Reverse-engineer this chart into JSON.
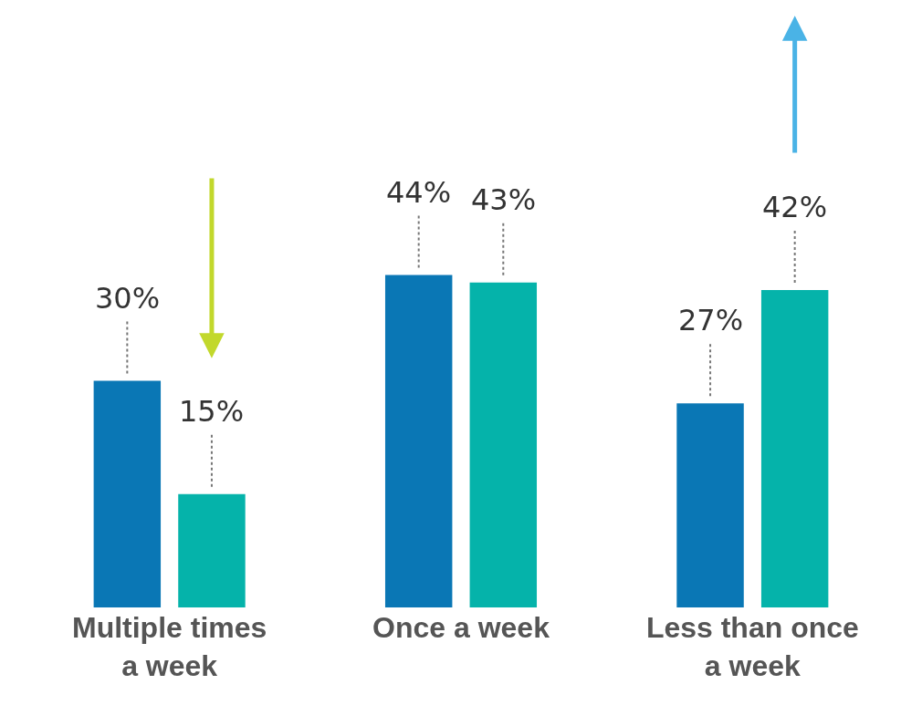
{
  "chart_data": {
    "type": "bar",
    "categories": [
      "Multiple times a week",
      "Once a week",
      "Less than once a week"
    ],
    "series": [
      {
        "color": "#0a77b5",
        "values": [
          30,
          44,
          27
        ],
        "value_labels": [
          "30%",
          "44%",
          "27%"
        ]
      },
      {
        "color": "#05b3aa",
        "values": [
          15,
          43,
          42
        ],
        "value_labels": [
          "15%",
          "43%",
          "42%"
        ]
      }
    ]
  }
}
